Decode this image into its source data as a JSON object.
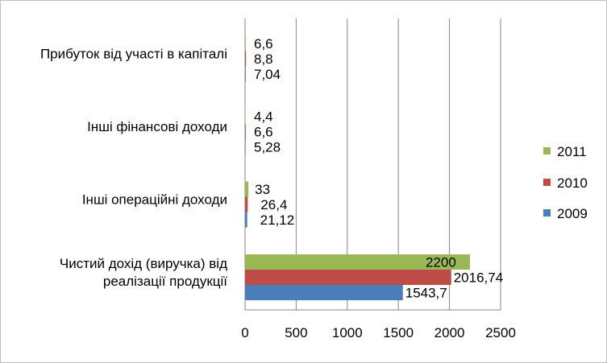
{
  "chart_data": {
    "type": "bar",
    "orientation": "horizontal",
    "categories": [
      [
        "Чистий дохід (виручка) від",
        "реалізації продукції"
      ],
      [
        "Інші операційні доходи"
      ],
      [
        "Інші фінансові доходи"
      ],
      [
        "Прибуток від участі в капіталі"
      ]
    ],
    "series": [
      {
        "name": "2009",
        "color": "#4a7ebb",
        "values": [
          1543.7,
          21.12,
          5.28,
          7.04
        ],
        "labels": [
          "1543,7",
          "21,12",
          "5,28",
          "7,04"
        ]
      },
      {
        "name": "2010",
        "color": "#be4b48",
        "values": [
          2016.74,
          26.4,
          6.6,
          8.8
        ],
        "labels": [
          "2016,74",
          "26,4",
          "6,6",
          "8,8"
        ]
      },
      {
        "name": "2011",
        "color": "#98b954",
        "values": [
          2200,
          33,
          4.4,
          6.6
        ],
        "labels": [
          "2200",
          "33",
          "4,4",
          "6,6"
        ]
      }
    ],
    "xlim": [
      0,
      2500
    ],
    "xticks": [
      "0",
      "500",
      "1000",
      "1500",
      "2000",
      "2500"
    ],
    "grid": "vertical",
    "legend_position": "right",
    "legend_order": [
      "2011",
      "2010",
      "2009"
    ]
  }
}
